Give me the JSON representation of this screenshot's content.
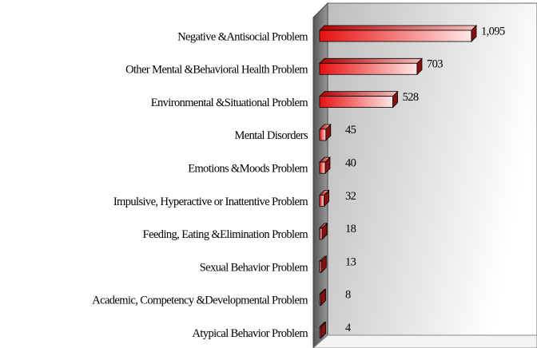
{
  "chart_data": {
    "type": "bar3d_horizontal",
    "categories": [
      "Negative &Antisocial Problem",
      "Other Mental &Behavioral Health Problem",
      "Environmental &Situational Problem",
      "Mental Disorders",
      "Emotions &Moods Problem",
      "Impulsive, Hyperactive or Inattentive Problem",
      "Feeding, Eating &Elimination Problem",
      "Sexual Behavior Problem",
      "Academic, Competency &Developmental Problem",
      "Atypical Behavior Problem"
    ],
    "values": [
      1095,
      703,
      528,
      45,
      40,
      32,
      18,
      13,
      8,
      4
    ],
    "value_labels": [
      "1,095",
      "703",
      "528",
      "45",
      "40",
      "32",
      "18",
      "13",
      "8",
      "4"
    ],
    "color": "#e02020"
  }
}
